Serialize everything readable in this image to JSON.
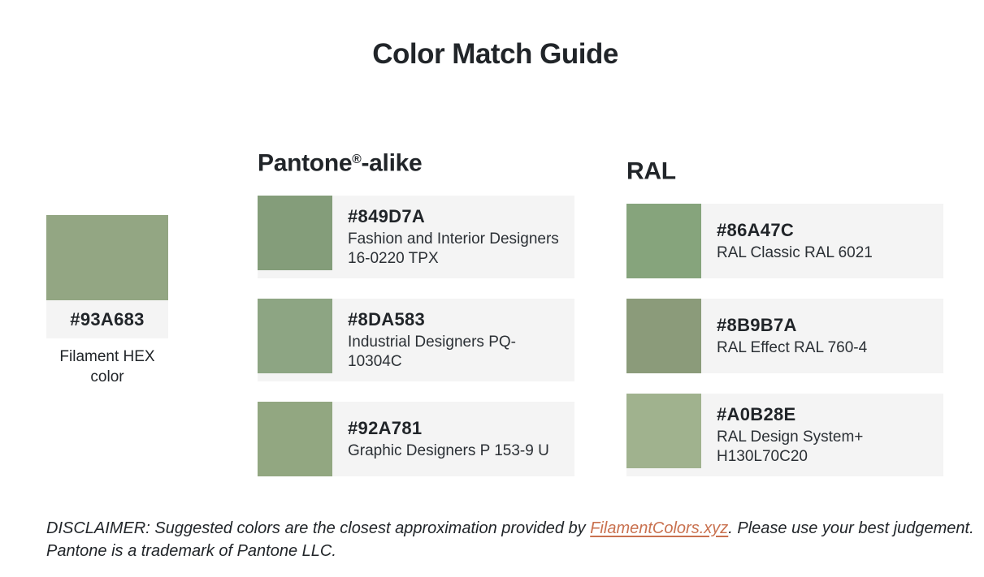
{
  "title": "Color Match Guide",
  "filament": {
    "hex": "#93A683",
    "caption": "Filament HEX color"
  },
  "sections": [
    {
      "id": "pantone",
      "heading": {
        "brand": "Pantone",
        "reg_mark": "®",
        "suffix": "-alike"
      },
      "cards": [
        {
          "hex": "#849D7A",
          "description": "Fashion and Interior Designers 16-0220 TPX"
        },
        {
          "hex": "#8DA583",
          "description": "Industrial Designers PQ-10304C"
        },
        {
          "hex": "#92A781",
          "description": "Graphic Designers P 153-9 U"
        }
      ]
    },
    {
      "id": "ral",
      "heading": {
        "brand": "RAL",
        "reg_mark": "",
        "suffix": ""
      },
      "cards": [
        {
          "hex": "#86A47C",
          "description": "RAL Classic RAL 6021"
        },
        {
          "hex": "#8B9B7A",
          "description": "RAL Effect RAL 760-4"
        },
        {
          "hex": "#A0B28E",
          "description": "RAL Design System+ H130L70C20"
        }
      ]
    }
  ],
  "disclaimer": {
    "prefix": "DISCLAIMER: Suggested colors are the closest approximation provided by ",
    "link_text": "FilamentColors.xyz",
    "suffix": ". Please use your best judgement. Pantone is a trademark of Pantone LLC."
  },
  "colors": {
    "page_background": "#FFFFFF",
    "card_background": "#F4F4F4",
    "text": "#212529",
    "link": "#C9714F"
  }
}
